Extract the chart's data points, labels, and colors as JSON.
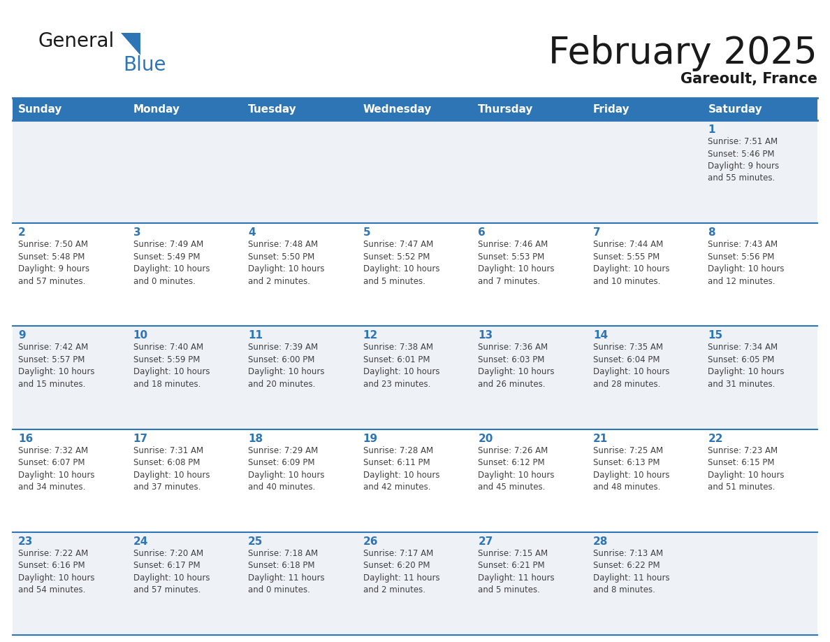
{
  "title": "February 2025",
  "subtitle": "Gareoult, France",
  "header_color": "#2E75B6",
  "header_text_color": "#FFFFFF",
  "cell_bg_odd": "#EEF2F7",
  "cell_bg_even": "#FFFFFF",
  "day_number_color": "#2E75B6",
  "text_color": "#404040",
  "border_color": "#2E75B6",
  "days_of_week": [
    "Sunday",
    "Monday",
    "Tuesday",
    "Wednesday",
    "Thursday",
    "Friday",
    "Saturday"
  ],
  "weeks": [
    [
      {
        "day": null,
        "info": null
      },
      {
        "day": null,
        "info": null
      },
      {
        "day": null,
        "info": null
      },
      {
        "day": null,
        "info": null
      },
      {
        "day": null,
        "info": null
      },
      {
        "day": null,
        "info": null
      },
      {
        "day": 1,
        "info": "Sunrise: 7:51 AM\nSunset: 5:46 PM\nDaylight: 9 hours\nand 55 minutes."
      }
    ],
    [
      {
        "day": 2,
        "info": "Sunrise: 7:50 AM\nSunset: 5:48 PM\nDaylight: 9 hours\nand 57 minutes."
      },
      {
        "day": 3,
        "info": "Sunrise: 7:49 AM\nSunset: 5:49 PM\nDaylight: 10 hours\nand 0 minutes."
      },
      {
        "day": 4,
        "info": "Sunrise: 7:48 AM\nSunset: 5:50 PM\nDaylight: 10 hours\nand 2 minutes."
      },
      {
        "day": 5,
        "info": "Sunrise: 7:47 AM\nSunset: 5:52 PM\nDaylight: 10 hours\nand 5 minutes."
      },
      {
        "day": 6,
        "info": "Sunrise: 7:46 AM\nSunset: 5:53 PM\nDaylight: 10 hours\nand 7 minutes."
      },
      {
        "day": 7,
        "info": "Sunrise: 7:44 AM\nSunset: 5:55 PM\nDaylight: 10 hours\nand 10 minutes."
      },
      {
        "day": 8,
        "info": "Sunrise: 7:43 AM\nSunset: 5:56 PM\nDaylight: 10 hours\nand 12 minutes."
      }
    ],
    [
      {
        "day": 9,
        "info": "Sunrise: 7:42 AM\nSunset: 5:57 PM\nDaylight: 10 hours\nand 15 minutes."
      },
      {
        "day": 10,
        "info": "Sunrise: 7:40 AM\nSunset: 5:59 PM\nDaylight: 10 hours\nand 18 minutes."
      },
      {
        "day": 11,
        "info": "Sunrise: 7:39 AM\nSunset: 6:00 PM\nDaylight: 10 hours\nand 20 minutes."
      },
      {
        "day": 12,
        "info": "Sunrise: 7:38 AM\nSunset: 6:01 PM\nDaylight: 10 hours\nand 23 minutes."
      },
      {
        "day": 13,
        "info": "Sunrise: 7:36 AM\nSunset: 6:03 PM\nDaylight: 10 hours\nand 26 minutes."
      },
      {
        "day": 14,
        "info": "Sunrise: 7:35 AM\nSunset: 6:04 PM\nDaylight: 10 hours\nand 28 minutes."
      },
      {
        "day": 15,
        "info": "Sunrise: 7:34 AM\nSunset: 6:05 PM\nDaylight: 10 hours\nand 31 minutes."
      }
    ],
    [
      {
        "day": 16,
        "info": "Sunrise: 7:32 AM\nSunset: 6:07 PM\nDaylight: 10 hours\nand 34 minutes."
      },
      {
        "day": 17,
        "info": "Sunrise: 7:31 AM\nSunset: 6:08 PM\nDaylight: 10 hours\nand 37 minutes."
      },
      {
        "day": 18,
        "info": "Sunrise: 7:29 AM\nSunset: 6:09 PM\nDaylight: 10 hours\nand 40 minutes."
      },
      {
        "day": 19,
        "info": "Sunrise: 7:28 AM\nSunset: 6:11 PM\nDaylight: 10 hours\nand 42 minutes."
      },
      {
        "day": 20,
        "info": "Sunrise: 7:26 AM\nSunset: 6:12 PM\nDaylight: 10 hours\nand 45 minutes."
      },
      {
        "day": 21,
        "info": "Sunrise: 7:25 AM\nSunset: 6:13 PM\nDaylight: 10 hours\nand 48 minutes."
      },
      {
        "day": 22,
        "info": "Sunrise: 7:23 AM\nSunset: 6:15 PM\nDaylight: 10 hours\nand 51 minutes."
      }
    ],
    [
      {
        "day": 23,
        "info": "Sunrise: 7:22 AM\nSunset: 6:16 PM\nDaylight: 10 hours\nand 54 minutes."
      },
      {
        "day": 24,
        "info": "Sunrise: 7:20 AM\nSunset: 6:17 PM\nDaylight: 10 hours\nand 57 minutes."
      },
      {
        "day": 25,
        "info": "Sunrise: 7:18 AM\nSunset: 6:18 PM\nDaylight: 11 hours\nand 0 minutes."
      },
      {
        "day": 26,
        "info": "Sunrise: 7:17 AM\nSunset: 6:20 PM\nDaylight: 11 hours\nand 2 minutes."
      },
      {
        "day": 27,
        "info": "Sunrise: 7:15 AM\nSunset: 6:21 PM\nDaylight: 11 hours\nand 5 minutes."
      },
      {
        "day": 28,
        "info": "Sunrise: 7:13 AM\nSunset: 6:22 PM\nDaylight: 11 hours\nand 8 minutes."
      },
      {
        "day": null,
        "info": null
      }
    ]
  ]
}
